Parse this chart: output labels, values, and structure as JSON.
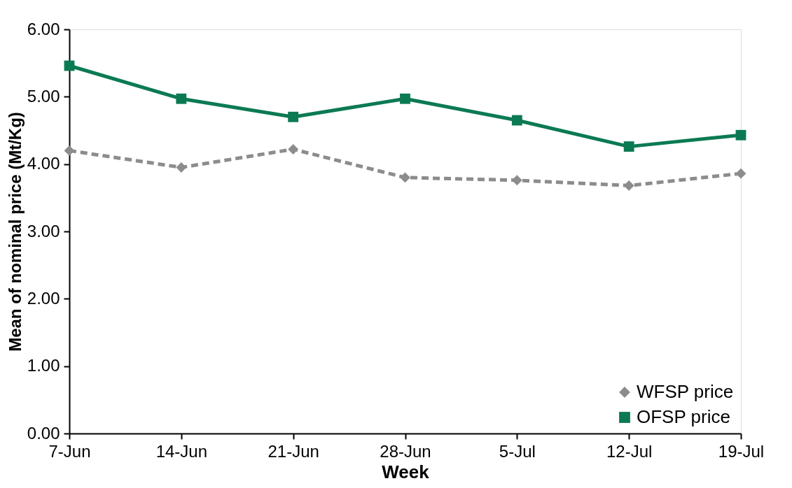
{
  "chart_data": {
    "type": "line",
    "xlabel": "Week",
    "ylabel": "Mean of nominal price (Mt/Kg)",
    "categories": [
      "7-Jun",
      "14-Jun",
      "21-Jun",
      "28-Jun",
      "5-Jul",
      "12-Jul",
      "19-Jul"
    ],
    "series": [
      {
        "name": "WFSP price",
        "color": "#8c8c8c",
        "marker": "diamond",
        "line_style": "dashed",
        "values": [
          4.2,
          3.95,
          4.22,
          3.8,
          3.76,
          3.68,
          3.86
        ]
      },
      {
        "name": "OFSP price",
        "color": "#0b7a52",
        "marker": "square",
        "line_style": "solid",
        "values": [
          5.46,
          4.97,
          4.7,
          4.97,
          4.65,
          4.26,
          4.43
        ]
      }
    ],
    "ylim": [
      0,
      6
    ],
    "yticks": [
      {
        "value": 0,
        "label": "0.00"
      },
      {
        "value": 1,
        "label": "1.00"
      },
      {
        "value": 2,
        "label": "2.00"
      },
      {
        "value": 3,
        "label": "3.00"
      },
      {
        "value": 4,
        "label": "4.00"
      },
      {
        "value": 5,
        "label": "5.00"
      },
      {
        "value": 6,
        "label": "6.00"
      }
    ],
    "grid": false,
    "legend": "bottom right"
  }
}
